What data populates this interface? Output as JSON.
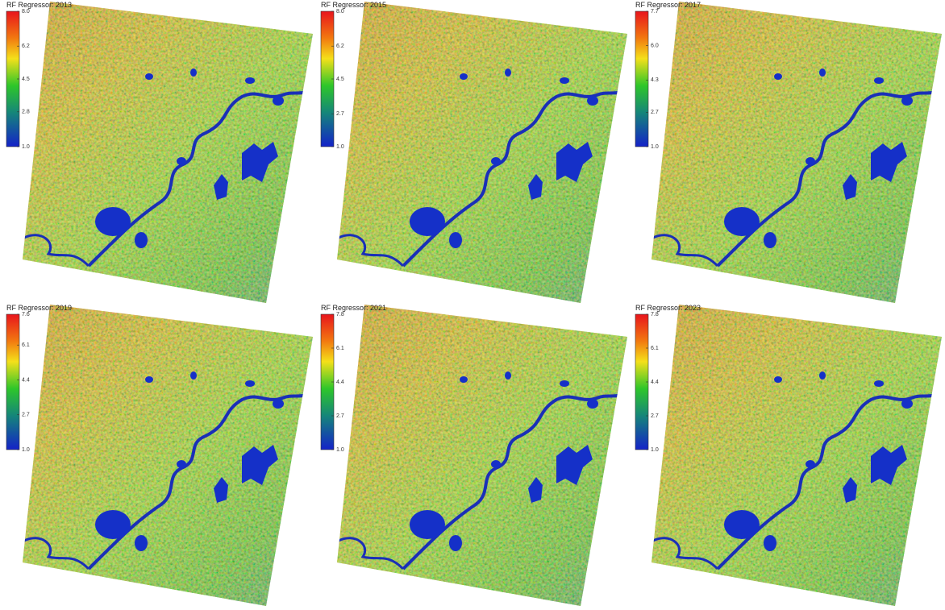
{
  "panels": [
    {
      "title": "RF Regressor: 2013",
      "colorbar": {
        "ticks": [
          {
            "value": 8,
            "label": "8.0"
          },
          6.2,
          4.5,
          2.8,
          {
            "value": 1,
            "label": "1.0"
          }
        ]
      }
    },
    {
      "title": "RF Regressor: 2015",
      "colorbar": {
        "ticks": [
          {
            "value": 8,
            "label": "8.0"
          },
          6.2,
          4.5,
          2.7,
          {
            "value": 1,
            "label": "1.0"
          }
        ]
      }
    },
    {
      "title": "RF Regressor: 2017",
      "colorbar": {
        "ticks": [
          7.7,
          {
            "value": 6,
            "label": "6.0"
          },
          4.3,
          2.7,
          {
            "value": 1,
            "label": "1.0"
          }
        ]
      }
    },
    {
      "title": "RF Regressor: 2019",
      "colorbar": {
        "ticks": [
          7.6,
          6.1,
          4.4,
          2.7,
          {
            "value": 1,
            "label": "1.0"
          }
        ]
      }
    },
    {
      "title": "RF Regressor: 2021",
      "colorbar": {
        "ticks": [
          7.8,
          6.1,
          4.4,
          2.7,
          {
            "value": 1,
            "label": "1.0"
          }
        ]
      }
    },
    {
      "title": "RF Regressor: 2023",
      "colorbar": {
        "ticks": [
          7.8,
          6.1,
          4.4,
          2.7,
          {
            "value": 1,
            "label": "1.0"
          }
        ]
      }
    }
  ]
}
